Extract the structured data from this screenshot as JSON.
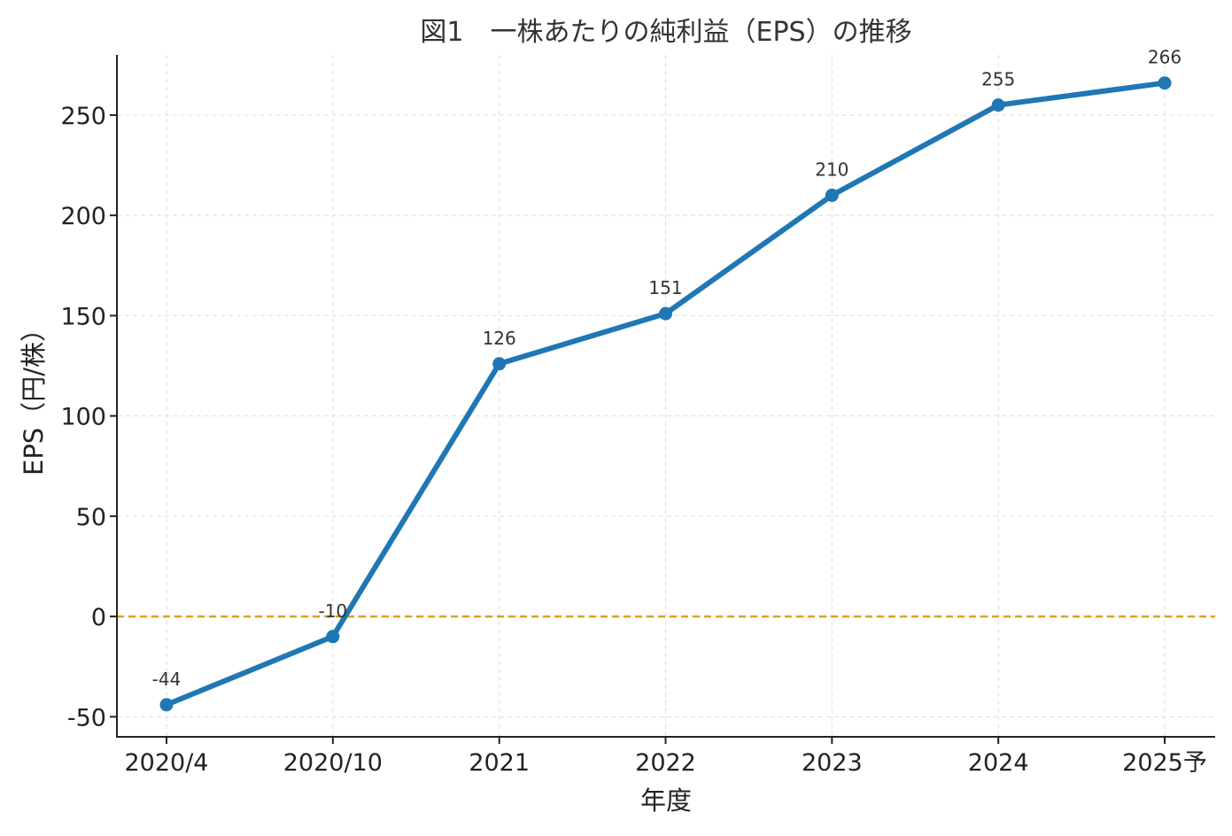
{
  "chart_data": {
    "type": "line",
    "title": "図1　一株あたりの純利益（EPS）の推移",
    "xlabel": "年度",
    "ylabel": "EPS（円/株）",
    "categories": [
      "2020/4",
      "2020/10",
      "2021",
      "2022",
      "2023",
      "2024",
      "2025予"
    ],
    "series": [
      {
        "values": [
          -44,
          -10,
          126,
          151,
          210,
          255,
          266
        ],
        "color": "#1f77b4"
      }
    ],
    "data_labels": [
      "-44",
      "-10",
      "126",
      "151",
      "210",
      "255",
      "266"
    ],
    "ylim": [
      -60,
      280
    ],
    "yticks": [
      -50,
      0,
      50,
      100,
      150,
      200,
      250
    ],
    "reference_line": {
      "y": 0,
      "color": "#e0a020",
      "style": "dashed"
    },
    "grid": true
  }
}
